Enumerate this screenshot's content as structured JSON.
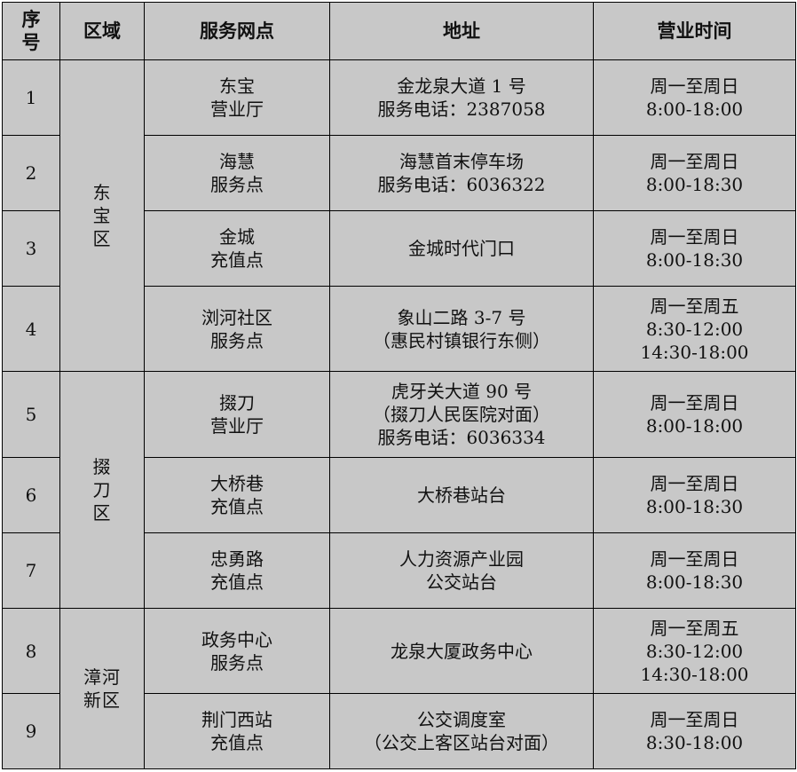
{
  "headers": [
    "序\n号",
    "区域",
    "服务网点",
    "地址",
    "营业时间"
  ],
  "districts": [
    "东\n宝\n区",
    "掇\n刀\n区",
    "漳河\n新区"
  ],
  "rows": [
    {
      "no": "1",
      "name": "东宝\n营业厅",
      "address": "金龙泉大道 1 号\n服务电话：2387058",
      "hours": "周一至周日\n8:00-18:00"
    },
    {
      "no": "2",
      "name": "海慧\n服务点",
      "address": "海慧首末停车场\n服务电话：6036322",
      "hours": "周一至周日\n8:00-18:30"
    },
    {
      "no": "3",
      "name": "金城\n充值点",
      "address": "金城时代门口",
      "hours": "周一至周日\n8:00-18:30"
    },
    {
      "no": "4",
      "name": "浏河社区\n服务点",
      "address": "象山二路 3-7 号\n（惠民村镇银行东侧）",
      "hours": "周一至周五\n8:30-12:00\n14:30-18:00"
    },
    {
      "no": "5",
      "name": "掇刀\n营业厅",
      "address": "虎牙关大道 90 号\n（掇刀人民医院对面）\n服务电话：6036334",
      "hours": "周一至周日\n8:00-18:00"
    },
    {
      "no": "6",
      "name": "大桥巷\n充值点",
      "address": "大桥巷站台",
      "hours": "周一至周日\n8:00-18:30"
    },
    {
      "no": "7",
      "name": "忠勇路\n充值点",
      "address": "人力资源产业园\n公交站台",
      "hours": "周一至周日\n8:00-18:30"
    },
    {
      "no": "8",
      "name": "政务中心\n服务点",
      "address": "龙泉大厦政务中心",
      "hours": "周一至周五\n8:30-12:00\n14:30-18:00"
    },
    {
      "no": "9",
      "name": "荆门西站\n充值点",
      "address": "公交调度室\n（公交上客区站台对面）",
      "hours": "周一至周日\n8:30-18:00"
    }
  ]
}
